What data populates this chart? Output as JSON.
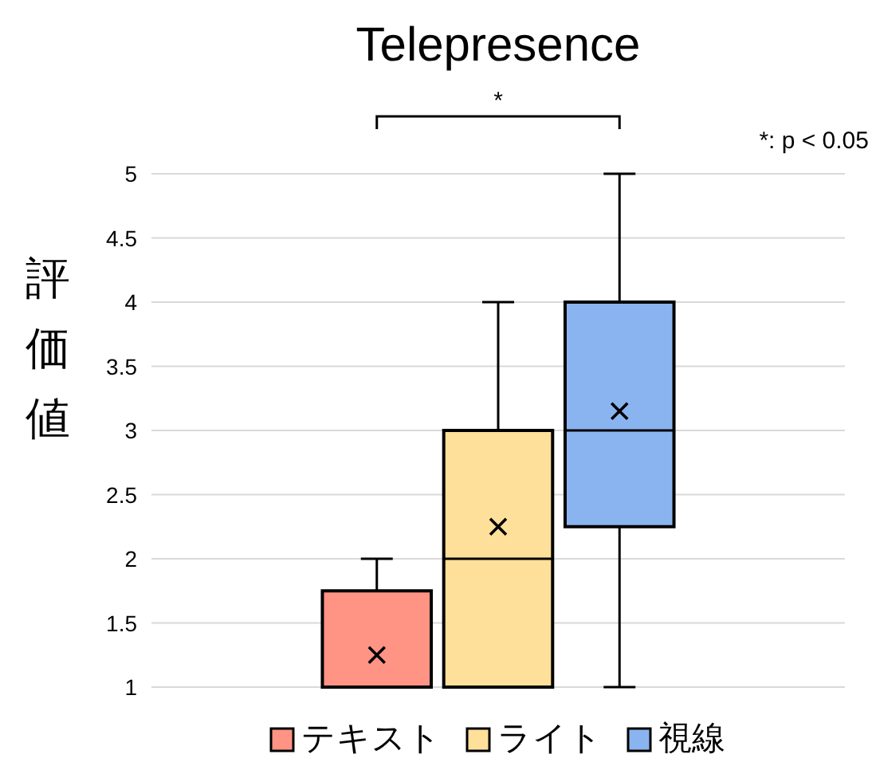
{
  "chart_data": {
    "type": "box",
    "title": "Telepresence",
    "ylabel": "評価値",
    "categories": [
      null
    ],
    "series": [
      {
        "name": "テキスト",
        "color": "#ff9485",
        "boxes": [
          {
            "low": 1,
            "q1": 1,
            "median": 1,
            "q3": 1.75,
            "high": 2,
            "mean": 1.25
          }
        ]
      },
      {
        "name": "ライト",
        "color": "#ffe09a",
        "boxes": [
          {
            "low": 1,
            "q1": 1,
            "median": 2,
            "q3": 3,
            "high": 4,
            "mean": 2.25
          }
        ]
      },
      {
        "name": "視線",
        "color": "#8ab4f0",
        "boxes": [
          {
            "low": 1,
            "q1": 2.25,
            "median": 3,
            "q3": 4,
            "high": 5,
            "mean": 3.15
          }
        ]
      }
    ],
    "ylim": [
      1,
      5
    ],
    "yticks": [
      1,
      1.5,
      2,
      2.5,
      3,
      3.5,
      4,
      4.5,
      5
    ],
    "grid": "y",
    "legend": "bottom",
    "annotations": [
      "*",
      "*: p < 0.05"
    ]
  }
}
